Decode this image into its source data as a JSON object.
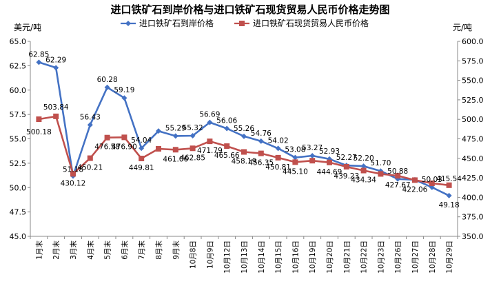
{
  "chart_data": {
    "type": "line",
    "title": "进口铁矿石到岸价格与进口铁矿石现货贸易人民币价格走势图",
    "y_left_unit": "美元/吨",
    "y_right_unit": "元/吨",
    "y_left_lim": [
      45.0,
      65.0
    ],
    "y_left_ticks": [
      "45.0",
      "47.5",
      "50.0",
      "52.5",
      "55.0",
      "57.5",
      "60.0",
      "62.5",
      "65.0"
    ],
    "y_right_lim": [
      350.0,
      600.0
    ],
    "y_right_ticks": [
      "350.0",
      "375.0",
      "400.0",
      "425.0",
      "450.0",
      "475.0",
      "500.0",
      "525.0",
      "550.0",
      "575.0",
      "600.0"
    ],
    "categories": [
      "1月末",
      "2月末",
      "3月末",
      "4月末",
      "5月末",
      "6月末",
      "7月末",
      "8月末",
      "9月末",
      "10月8日",
      "10月9日",
      "10月12日",
      "10月13日",
      "10月14日",
      "10月15日",
      "10月16日",
      "10月19日",
      "10月20日",
      "10月21日",
      "10月22日",
      "10月23日",
      "10月26日",
      "10月27日",
      "10月28日",
      "10月29日"
    ],
    "series": [
      {
        "name": "进口铁矿石到岸价格",
        "axis": "left",
        "color": "#4472c4",
        "marker": "diamond",
        "values": [
          62.85,
          62.29,
          51.18,
          56.43,
          60.28,
          59.19,
          54.04,
          55.8,
          55.29,
          55.32,
          56.69,
          56.06,
          55.26,
          54.76,
          54.02,
          53.08,
          53.27,
          52.93,
          52.27,
          52.2,
          51.7,
          50.88,
          50.8,
          50.03,
          49.18
        ],
        "labels": [
          "62.85",
          "62.29",
          "51.18",
          "56.43",
          "60.28",
          "59.19",
          "54.04",
          "",
          "55.29",
          "55.32",
          "56.69",
          "56.06",
          "55.26",
          "54.76",
          "54.02",
          "53.08",
          "53.27",
          "52.93",
          "52.27",
          "52.20",
          "51.70",
          "50.88",
          "",
          "50.03",
          "49.18"
        ]
      },
      {
        "name": "进口铁矿石现货贸易人民币价格",
        "axis": "right",
        "color": "#c0504d",
        "marker": "square",
        "values": [
          500.18,
          503.84,
          430.12,
          450.21,
          476.58,
          476.9,
          449.81,
          462.2,
          461.06,
          462.85,
          471.79,
          465.66,
          458.19,
          456.35,
          450.81,
          445.1,
          447.0,
          444.69,
          439.23,
          434.34,
          430.0,
          427.67,
          422.06,
          418.0,
          415.54
        ],
        "labels": [
          "500.18",
          "503.84",
          "430.12",
          "450.21",
          "476.58",
          "476.90",
          "449.81",
          "",
          "461.06",
          "462.85",
          "471.79",
          "465.66",
          "458.19",
          "456.35",
          "450.81",
          "445.10",
          "",
          "444.69",
          "439.23",
          "434.34",
          "",
          "427.67",
          "422.06",
          "",
          "415.54"
        ]
      }
    ]
  }
}
